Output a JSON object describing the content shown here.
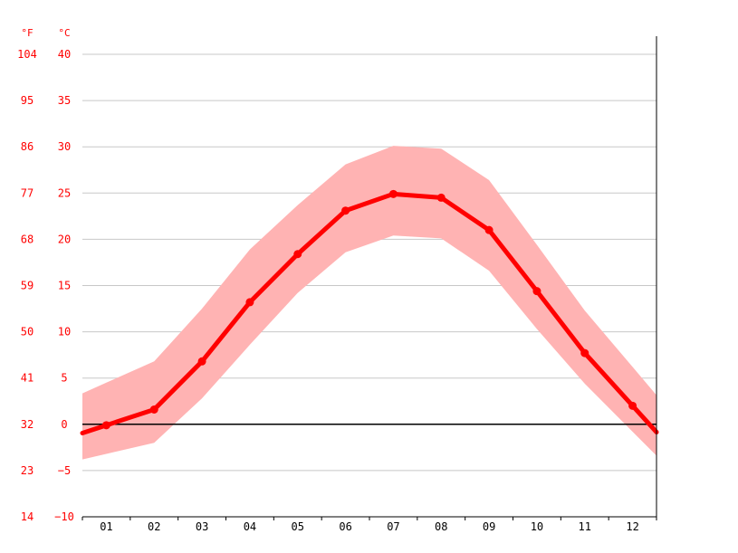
{
  "chart_data": {
    "type": "line",
    "unit_labels": {
      "f": "°F",
      "c": "°C"
    },
    "y_ticks_c": [
      "40",
      "35",
      "30",
      "25",
      "20",
      "15",
      "10",
      "5",
      "0",
      "−5",
      "−10"
    ],
    "y_ticks_f": [
      "104",
      "95",
      "86",
      "77",
      "68",
      "59",
      "50",
      "41",
      "32",
      "23",
      "14"
    ],
    "categories": [
      "01",
      "02",
      "03",
      "04",
      "05",
      "06",
      "07",
      "08",
      "09",
      "10",
      "11",
      "12"
    ],
    "ylim": [
      -10,
      40
    ],
    "grid": true,
    "series": [
      {
        "values": [
          -0.1,
          1.6,
          6.8,
          13.2,
          18.4,
          23.1,
          24.9,
          24.5,
          21.0,
          14.4,
          7.7,
          2.0
        ],
        "color": "#ff0000"
      }
    ],
    "band": {
      "upper": [
        4.5,
        6.8,
        12.5,
        18.9,
        23.7,
        28.1,
        30.1,
        29.8,
        26.4,
        19.4,
        12.3,
        6.2
      ],
      "lower": [
        -3.2,
        -2.0,
        2.8,
        8.6,
        14.2,
        18.6,
        20.4,
        20.1,
        16.6,
        10.3,
        4.4,
        -0.8
      ],
      "color": "#ffb3b3"
    },
    "zero_line_color": "#000000"
  }
}
